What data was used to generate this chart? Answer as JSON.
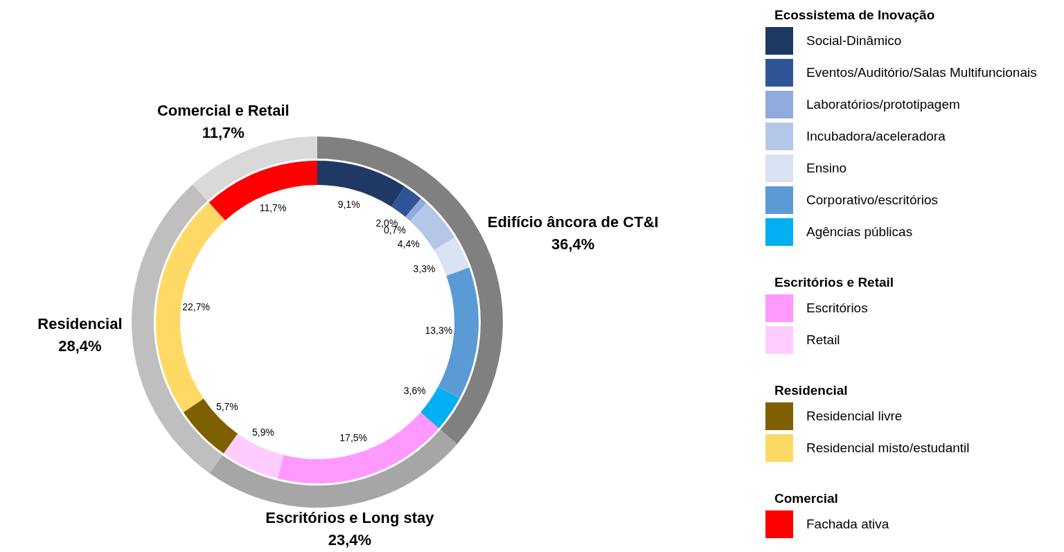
{
  "chart_data": [
    {
      "type": "donut",
      "categories": [
        "Edifício âncora de CT&I",
        "Escritórios e Long stay",
        "Residencial",
        "Comercial e Retail"
      ],
      "values": [
        36.4,
        23.4,
        28.4,
        11.7
      ],
      "colors": [
        "#808080",
        "#a6a6a6",
        "#bfbfbf",
        "#d9d9d9"
      ],
      "value_labels": [
        "36,4%",
        "23,4%",
        "28,4%",
        "11,7%"
      ]
    },
    {
      "type": "donut",
      "legend": "right",
      "annotations": [
        "Ecossistema de Inovação",
        "Escritórios e Retail",
        "Residencial",
        "Comercial"
      ],
      "categories": [
        "Social-Dinâmico",
        "Eventos/Auditório/Salas Multifuncionais",
        "Laboratórios/prototipagem",
        "Incubadora/aceleradora",
        "Ensino",
        "Corporativo/escritórios",
        "Agências públicas",
        "Escritórios",
        "Retail",
        "Residencial livre",
        "Residencial misto/estudantil",
        "Fachada ativa"
      ],
      "values": [
        9.1,
        2.0,
        0.7,
        4.4,
        3.3,
        13.3,
        3.6,
        17.5,
        5.9,
        5.7,
        22.7,
        11.7
      ],
      "colors": [
        "#1f3864",
        "#2f5597",
        "#8faadc",
        "#b4c7e7",
        "#dae3f3",
        "#5b9bd5",
        "#00b0f0",
        "#ff99ff",
        "#ffccff",
        "#7f6000",
        "#ffd966",
        "#ff0000"
      ],
      "value_labels": [
        "9,1%",
        "2,0%",
        "0,7%",
        "4,4%",
        "3,3%",
        "13,3%",
        "3,6%",
        "17,5%",
        "5,9%",
        "5,7%",
        "22,7%",
        "11,7%"
      ]
    }
  ]
}
